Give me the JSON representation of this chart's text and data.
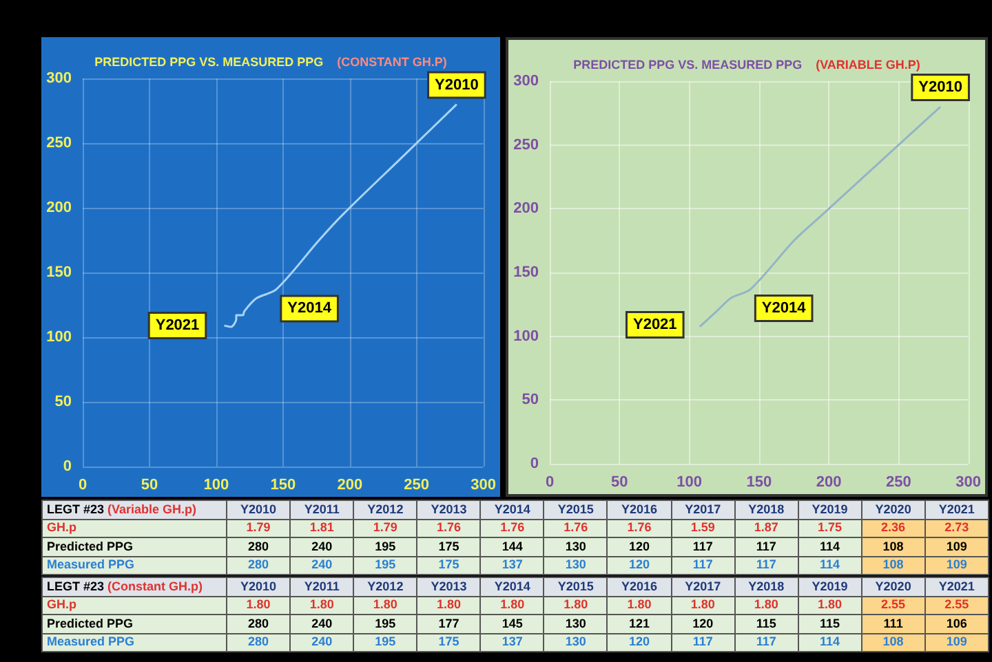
{
  "chart_data": [
    {
      "type": "line",
      "title": "PREDICTED PPG VS. MEASURED PPG",
      "subtitle": "(CONSTANT GH.P)",
      "xlim": [
        0,
        300
      ],
      "xticks": [
        0,
        50,
        100,
        150,
        200,
        250,
        300
      ],
      "ylim": [
        0,
        300
      ],
      "yticks": [
        0,
        50,
        100,
        150,
        200,
        250,
        300
      ],
      "grid": true,
      "marker": "none",
      "line_style": "solid",
      "series": [
        {
          "color": "#a9d3f3",
          "x": [
            280,
            240,
            195,
            177,
            145,
            130,
            121,
            120,
            115,
            115,
            111,
            106
          ],
          "values": [
            280,
            240,
            195,
            175,
            137,
            130,
            120,
            117,
            117,
            114,
            108,
            109
          ]
        }
      ],
      "annotations": [
        {
          "text": "Y2010",
          "x": 280,
          "y": 280
        },
        {
          "text": "Y2014",
          "x": 145,
          "y": 137
        },
        {
          "text": "Y2021",
          "x": 106,
          "y": 109
        }
      ]
    },
    {
      "type": "line",
      "title": "PREDICTED PPG VS. MEASURED PPG",
      "subtitle": "(VARIABLE GH.P)",
      "xlim": [
        0,
        300
      ],
      "xticks": [
        0,
        50,
        100,
        150,
        200,
        250,
        300
      ],
      "ylim": [
        0,
        300
      ],
      "yticks": [
        0,
        50,
        100,
        150,
        200,
        250,
        300
      ],
      "grid": true,
      "marker": "none",
      "line_style": "solid",
      "series": [
        {
          "color": "#93b4c6",
          "x": [
            280,
            240,
            195,
            175,
            144,
            130,
            120,
            117,
            117,
            114,
            108,
            109
          ],
          "values": [
            280,
            240,
            195,
            175,
            137,
            130,
            120,
            117,
            117,
            114,
            108,
            109
          ]
        }
      ],
      "annotations": [
        {
          "text": "Y2010",
          "x": 280,
          "y": 280
        },
        {
          "text": "Y2014",
          "x": 144,
          "y": 137
        },
        {
          "text": "Y2021",
          "x": 109,
          "y": 109
        }
      ]
    },
    {
      "type": "other",
      "title": "LEGT #23",
      "subtitle": "(Variable GH.p)",
      "categories": [
        "Y2010",
        "Y2011",
        "Y2012",
        "Y2013",
        "Y2014",
        "Y2015",
        "Y2016",
        "Y2017",
        "Y2018",
        "Y2019",
        "Y2020",
        "Y2021"
      ],
      "y_categories": [
        "GH.p",
        "Predicted PPG",
        "Measured PPG"
      ],
      "cell_labels": [
        [
          "1.79",
          "1.81",
          "1.79",
          "1.76",
          "1.76",
          "1.76",
          "1.76",
          "1.59",
          "1.87",
          "1.75",
          "2.36",
          "2.73"
        ],
        [
          "280",
          "240",
          "195",
          "175",
          "144",
          "130",
          "120",
          "117",
          "117",
          "114",
          "108",
          "109"
        ],
        [
          "280",
          "240",
          "195",
          "175",
          "137",
          "130",
          "120",
          "117",
          "117",
          "114",
          "108",
          "109"
        ]
      ]
    },
    {
      "type": "other",
      "title": "LEGT #23",
      "subtitle": "(Constant GH.p)",
      "categories": [
        "Y2010",
        "Y2011",
        "Y2012",
        "Y2013",
        "Y2014",
        "Y2015",
        "Y2016",
        "Y2017",
        "Y2018",
        "Y2019",
        "Y2020",
        "Y2021"
      ],
      "y_categories": [
        "GH.p",
        "Predicted PPG",
        "Measured PPG"
      ],
      "cell_labels": [
        [
          "1.80",
          "1.80",
          "1.80",
          "1.80",
          "1.80",
          "1.80",
          "1.80",
          "1.80",
          "1.80",
          "1.80",
          "2.55",
          "2.55"
        ],
        [
          "280",
          "240",
          "195",
          "177",
          "145",
          "130",
          "121",
          "120",
          "115",
          "115",
          "111",
          "106"
        ],
        [
          "280",
          "240",
          "195",
          "175",
          "137",
          "130",
          "120",
          "117",
          "117",
          "114",
          "108",
          "109"
        ]
      ]
    }
  ]
}
